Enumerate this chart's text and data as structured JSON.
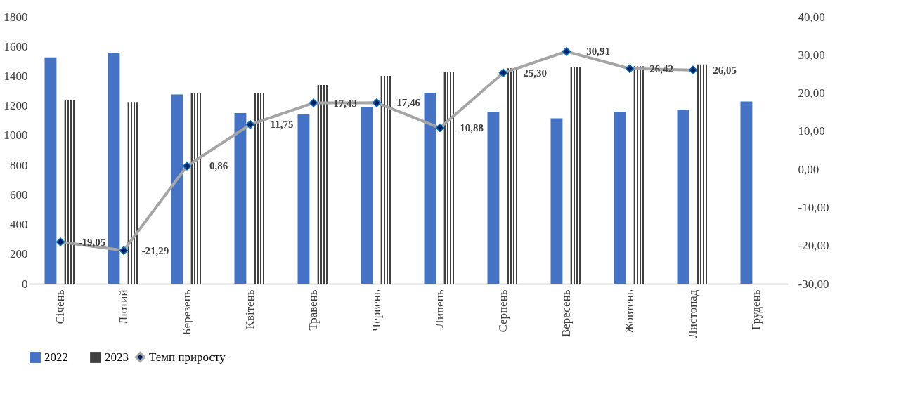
{
  "chart_data": {
    "type": "bar",
    "categories": [
      "Січень",
      "Лютий",
      "Березень",
      "Квітень",
      "Травень",
      "Червень",
      "Липень",
      "Серпень",
      "Вересень",
      "Жовтень",
      "Листопад",
      "Грудень"
    ],
    "series": [
      {
        "name": "2022",
        "color": "#4472c4",
        "values": [
          1527,
          1558,
          1276,
          1151,
          1142,
          1194,
          1289,
          1160,
          1116,
          1160,
          1173,
          1229
        ]
      },
      {
        "name": "2023",
        "color": "#404040",
        "values": [
          1236,
          1226,
          1287,
          1286,
          1341,
          1402,
          1429,
          1453,
          1461,
          1467,
          1479,
          null
        ]
      },
      {
        "name": "Темп приросту",
        "type": "line",
        "axis": "y2",
        "color": "#a5a5a5",
        "values": [
          -19.05,
          -21.29,
          0.86,
          11.75,
          17.43,
          17.46,
          10.88,
          25.3,
          30.91,
          26.42,
          26.05,
          null
        ],
        "value_labels": [
          "-19,05",
          "-21,29",
          "0,86",
          "11,75",
          "17,43",
          "17,46",
          "10,88",
          "25,30",
          "30,91",
          "26,42",
          "26,05",
          null
        ]
      }
    ],
    "ylim": [
      0,
      1800
    ],
    "yticks": [
      0,
      200,
      400,
      600,
      800,
      1000,
      1200,
      1400,
      1600,
      1800
    ],
    "y2lim": [
      -30,
      40
    ],
    "y2ticks": [
      {
        "value": -30,
        "label": "-30,00"
      },
      {
        "value": -20,
        "label": "-20,00"
      },
      {
        "value": -10,
        "label": "-10,00"
      },
      {
        "value": 0,
        "label": "0,00"
      },
      {
        "value": 10,
        "label": "10,00"
      },
      {
        "value": 20,
        "label": "20,00"
      },
      {
        "value": 30,
        "label": "30,00"
      },
      {
        "value": 40,
        "label": "40,00"
      }
    ],
    "marker": "diamond",
    "legend": "bottom",
    "grid": false
  }
}
